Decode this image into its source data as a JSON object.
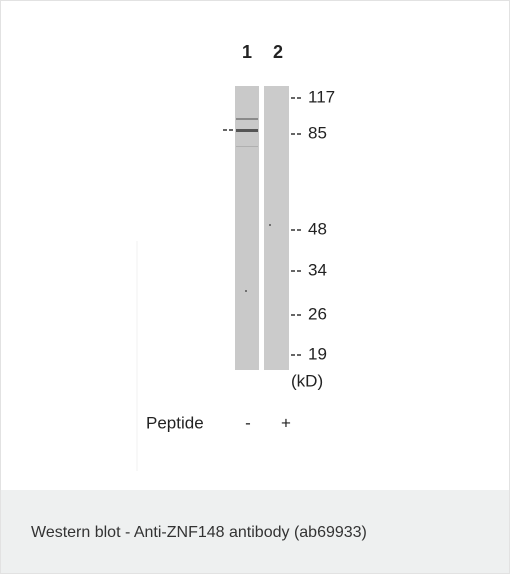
{
  "lanes": [
    "1",
    "2"
  ],
  "markers": [
    "117",
    "85",
    "48",
    "34",
    "26",
    "19"
  ],
  "unit": "(kD)",
  "peptide": {
    "label": "Peptide",
    "signs": [
      "-",
      "+"
    ]
  },
  "caption": "Western blot - Anti-ZNF148 antibody (ab69933)"
}
